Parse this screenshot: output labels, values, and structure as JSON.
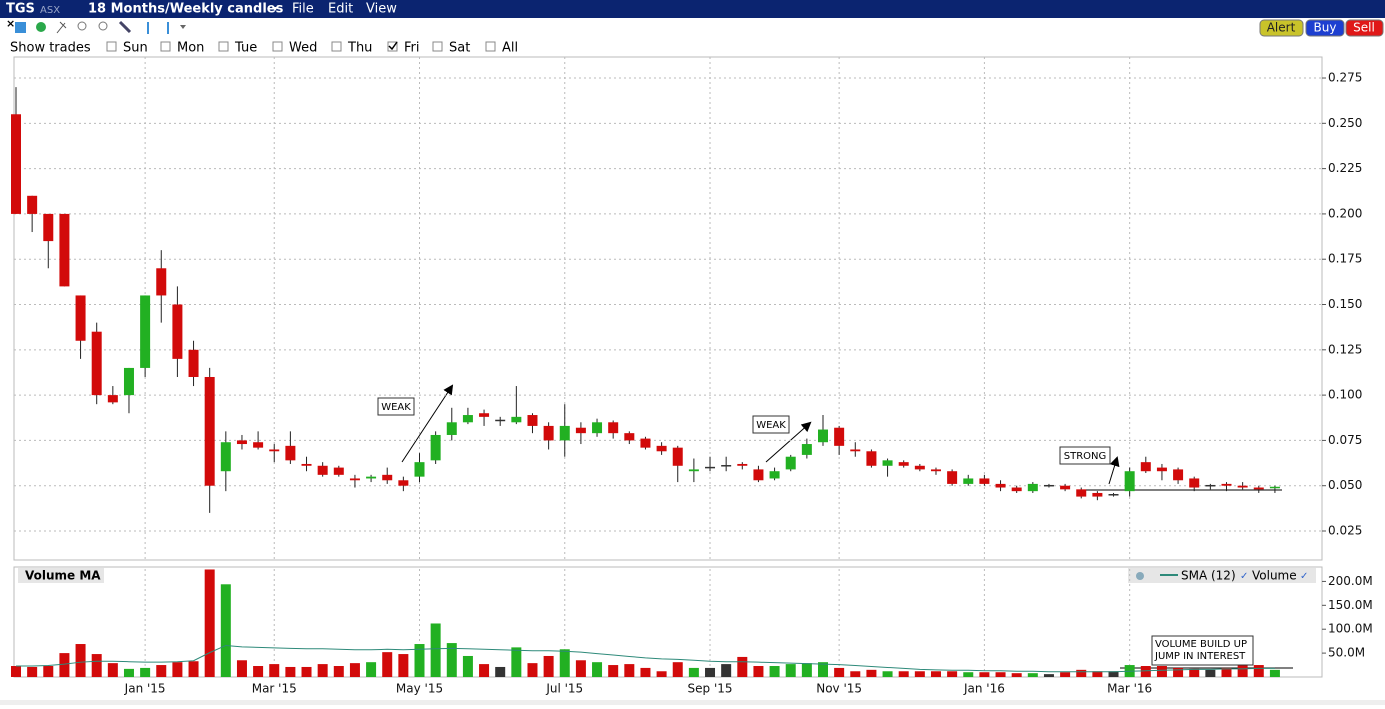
{
  "app": {
    "symbol": "TGS",
    "exchange": "ASX",
    "period": "18 Months/Weekly candles",
    "menus": [
      "File",
      "Edit",
      "View"
    ],
    "buttons": [
      "Alert",
      "Buy",
      "Sell"
    ],
    "show_trades": {
      "label": "Show trades",
      "days": [
        {
          "name": "Sun",
          "checked": false
        },
        {
          "name": "Mon",
          "checked": false
        },
        {
          "name": "Tue",
          "checked": false
        },
        {
          "name": "Wed",
          "checked": false
        },
        {
          "name": "Thu",
          "checked": false
        },
        {
          "name": "Fri",
          "checked": true
        },
        {
          "name": "Sat",
          "checked": false
        },
        {
          "name": "All",
          "checked": false
        }
      ]
    }
  },
  "chart_data": [
    {
      "type": "candlestick",
      "categories": [
        null,
        null,
        null,
        null,
        null,
        null,
        null,
        null,
        "Jan '15",
        null,
        null,
        null,
        null,
        null,
        null,
        null,
        "Mar '15",
        null,
        null,
        null,
        null,
        null,
        null,
        null,
        null,
        "May '15",
        null,
        null,
        null,
        null,
        null,
        null,
        null,
        null,
        "Jul '15",
        null,
        null,
        null,
        null,
        null,
        null,
        null,
        null,
        "Sep '15",
        null,
        null,
        null,
        null,
        null,
        null,
        null,
        "Nov '15",
        null,
        null,
        null,
        null,
        null,
        null,
        null,
        null,
        "Jan '16",
        null,
        null,
        null,
        null,
        null,
        null,
        null,
        null,
        "Mar '16",
        null,
        null,
        null,
        null,
        null,
        null,
        null,
        null,
        null
      ],
      "open": [
        0.255,
        0.21,
        0.2,
        0.2,
        0.155,
        0.135,
        0.1,
        0.1,
        0.115,
        0.17,
        0.15,
        0.125,
        0.11,
        0.058,
        0.075,
        0.074,
        0.07,
        0.072,
        0.062,
        0.061,
        0.06,
        0.054,
        0.054,
        0.056,
        0.053,
        0.055,
        0.064,
        0.078,
        0.085,
        0.09,
        0.086,
        0.085,
        0.089,
        0.083,
        0.075,
        0.082,
        0.079,
        0.085,
        0.079,
        0.076,
        0.072,
        0.071,
        0.058,
        0.06,
        0.061,
        0.062,
        0.059,
        0.054,
        0.059,
        0.067,
        0.074,
        0.082,
        0.07,
        0.069,
        0.061,
        0.063,
        0.061,
        0.059,
        0.058,
        0.051,
        0.054,
        0.051,
        0.049,
        0.047,
        0.05,
        0.05,
        0.048,
        0.046,
        0.045,
        0.047,
        0.063,
        0.06,
        0.059,
        0.054,
        0.05,
        0.051,
        0.05,
        0.049,
        0.0485
      ],
      "high": [
        0.27,
        0.21,
        0.2,
        0.2,
        0.155,
        0.14,
        0.105,
        0.115,
        0.155,
        0.18,
        0.16,
        0.13,
        0.115,
        0.08,
        0.078,
        0.08,
        0.073,
        0.08,
        0.066,
        0.063,
        0.061,
        0.056,
        0.056,
        0.06,
        0.055,
        0.068,
        0.08,
        0.093,
        0.093,
        0.092,
        0.088,
        0.105,
        0.09,
        0.085,
        0.095,
        0.085,
        0.087,
        0.086,
        0.08,
        0.077,
        0.074,
        0.072,
        0.065,
        0.066,
        0.066,
        0.063,
        0.061,
        0.06,
        0.067,
        0.076,
        0.089,
        0.083,
        0.074,
        0.07,
        0.065,
        0.064,
        0.062,
        0.06,
        0.059,
        0.056,
        0.056,
        0.053,
        0.05,
        0.052,
        0.051,
        0.051,
        0.049,
        0.047,
        0.046,
        0.06,
        0.066,
        0.062,
        0.06,
        0.055,
        0.051,
        0.052,
        0.052,
        0.05,
        0.05
      ],
      "low": [
        0.2,
        0.19,
        0.17,
        0.16,
        0.12,
        0.095,
        0.095,
        0.09,
        0.11,
        0.14,
        0.11,
        0.105,
        0.035,
        0.047,
        0.07,
        0.07,
        0.063,
        0.062,
        0.058,
        0.055,
        0.055,
        0.049,
        0.052,
        0.051,
        0.047,
        0.052,
        0.062,
        0.075,
        0.084,
        0.083,
        0.083,
        0.084,
        0.079,
        0.07,
        0.066,
        0.073,
        0.077,
        0.076,
        0.073,
        0.07,
        0.067,
        0.052,
        0.052,
        0.058,
        0.058,
        0.059,
        0.052,
        0.053,
        0.058,
        0.065,
        0.072,
        0.067,
        0.066,
        0.06,
        0.055,
        0.06,
        0.058,
        0.056,
        0.05,
        0.05,
        0.05,
        0.047,
        0.046,
        0.046,
        0.049,
        0.047,
        0.043,
        0.042,
        0.044,
        0.044,
        0.057,
        0.053,
        0.051,
        0.047,
        0.048,
        0.047,
        0.048,
        0.046,
        0.046
      ],
      "close": [
        0.2,
        0.2,
        0.185,
        0.16,
        0.13,
        0.1,
        0.096,
        0.115,
        0.155,
        0.155,
        0.12,
        0.11,
        0.05,
        0.074,
        0.073,
        0.071,
        0.069,
        0.064,
        0.061,
        0.056,
        0.056,
        0.053,
        0.055,
        0.053,
        0.05,
        0.063,
        0.078,
        0.085,
        0.089,
        0.088,
        0.086,
        0.088,
        0.083,
        0.075,
        0.083,
        0.079,
        0.085,
        0.079,
        0.075,
        0.071,
        0.069,
        0.061,
        0.059,
        0.06,
        0.061,
        0.061,
        0.053,
        0.058,
        0.066,
        0.073,
        0.081,
        0.072,
        0.069,
        0.061,
        0.064,
        0.061,
        0.059,
        0.058,
        0.051,
        0.054,
        0.051,
        0.049,
        0.047,
        0.051,
        0.05,
        0.048,
        0.044,
        0.044,
        0.045,
        0.058,
        0.058,
        0.058,
        0.053,
        0.049,
        0.05,
        0.05,
        0.049,
        0.048,
        0.049
      ],
      "colors": {
        "up": "#22b022",
        "down": "#d20a0a",
        "flat": "#333333"
      },
      "ylim": [
        0.009,
        0.2866
      ],
      "yticks": [
        0.025,
        {
          "value": 0.05,
          "label": "0.050"
        },
        0.075,
        {
          "value": 0.1,
          "label": "0.100"
        },
        0.125,
        {
          "value": 0.15,
          "label": "0.150"
        },
        0.175,
        {
          "value": 0.2,
          "label": "0.200"
        },
        0.225,
        {
          "value": 0.25,
          "label": "0.250"
        },
        0.275
      ],
      "grid": true,
      "annotations": [
        "WEAK",
        "WEAK",
        "STRONG"
      ]
    },
    {
      "type": "volume",
      "title": "Volume MA",
      "series": [
        {
          "name": "Volume",
          "values": [
            23,
            21,
            23,
            50,
            69,
            48,
            29,
            17,
            19,
            25,
            31,
            33,
            225,
            194,
            35,
            23,
            27,
            21,
            21,
            27,
            23,
            29,
            31,
            52,
            48,
            69,
            112,
            71,
            44,
            27,
            21,
            62,
            29,
            44,
            58,
            35,
            31,
            25,
            27,
            19,
            12,
            31,
            19,
            19,
            27,
            42,
            23,
            23,
            27,
            29,
            31,
            19,
            12,
            15,
            12,
            12,
            12,
            12,
            12,
            10,
            10,
            10,
            8,
            8,
            6,
            10,
            15,
            12,
            12,
            25,
            23,
            23,
            19,
            17,
            15,
            19,
            27,
            25,
            15
          ]
        },
        {
          "name": "SMA (12)",
          "color": "#2e8a7a",
          "values": [
            23,
            23,
            24,
            27,
            31,
            33,
            33,
            32,
            31,
            31,
            32,
            34,
            51,
            66,
            63,
            62,
            61,
            60,
            59,
            59,
            58,
            57,
            57,
            58,
            57,
            58,
            59,
            60,
            59,
            58,
            57,
            56,
            55,
            55,
            54,
            52,
            49,
            46,
            43,
            40,
            38,
            37,
            35,
            33,
            32,
            32,
            31,
            30,
            29,
            28,
            27,
            26,
            24,
            22,
            20,
            18,
            16,
            15,
            14,
            14,
            13,
            13,
            12,
            12,
            11,
            11,
            11,
            11,
            11,
            12,
            13,
            14,
            15,
            16,
            16,
            17,
            17,
            18,
            18
          ]
        }
      ],
      "ylim": [
        0,
        226
      ],
      "yticks": [
        {
          "value": 50,
          "label": "50.0M"
        },
        {
          "value": 100,
          "label": "100.0M"
        },
        {
          "value": 150,
          "label": "150.0M"
        },
        {
          "value": 200,
          "label": "200.0M"
        }
      ],
      "annotations": [
        "VOLUME BUILD UP",
        "JUMP IN INTEREST"
      ]
    }
  ]
}
